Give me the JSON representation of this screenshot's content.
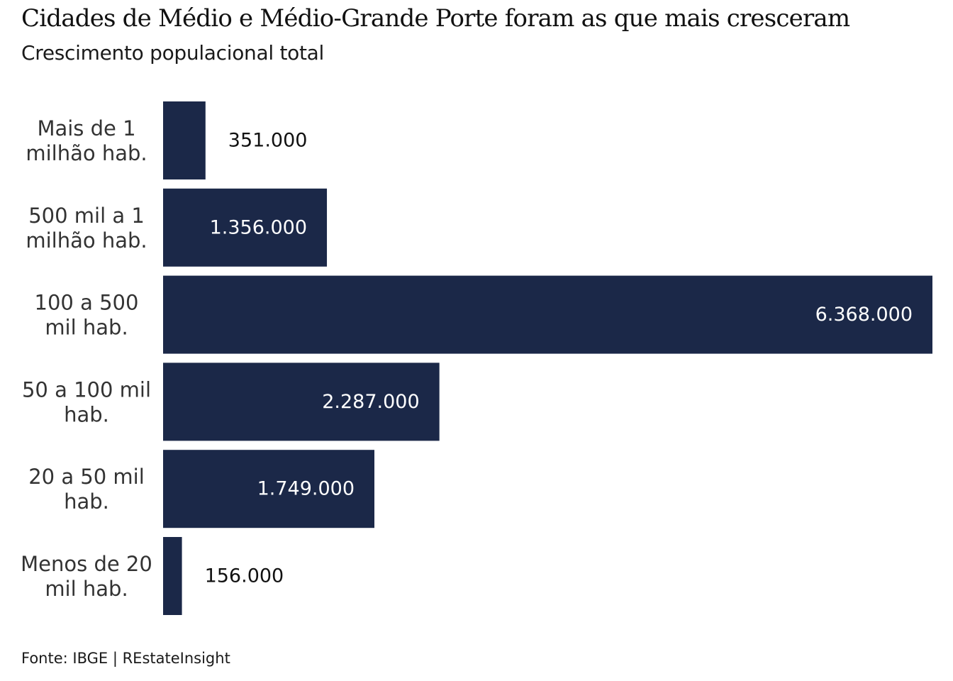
{
  "header": {
    "title": "Cidades de Médio e Médio-Grande Porte foram as que mais cresceram",
    "subtitle": "Crescimento populacional total"
  },
  "footer": {
    "source": "Fonte: IBGE | REstateInsight"
  },
  "colors": {
    "bar": "#1b2848",
    "label_inside": "#ffffff",
    "label_outside": "#111111"
  },
  "chart_data": {
    "type": "bar",
    "orientation": "horizontal",
    "title": "Cidades de Médio e Médio-Grande Porte foram as que mais cresceram",
    "subtitle": "Crescimento populacional total",
    "xlabel": "",
    "ylabel": "",
    "grid": false,
    "categories": [
      [
        "Mais de 1",
        "milhão hab."
      ],
      [
        "500 mil a 1",
        "milhão hab."
      ],
      [
        "100 a 500",
        "mil hab."
      ],
      [
        "50 a 100 mil",
        "hab."
      ],
      [
        "20 a 50 mil",
        "hab."
      ],
      [
        "Menos de 20",
        "mil hab."
      ]
    ],
    "values": [
      351000,
      1356000,
      6368000,
      2287000,
      1749000,
      156000
    ],
    "value_labels": [
      "351.000",
      "1.356.000",
      "6.368.000",
      "2.287.000",
      "1.749.000",
      "156.000"
    ],
    "xlim": [
      0,
      6368000
    ]
  }
}
